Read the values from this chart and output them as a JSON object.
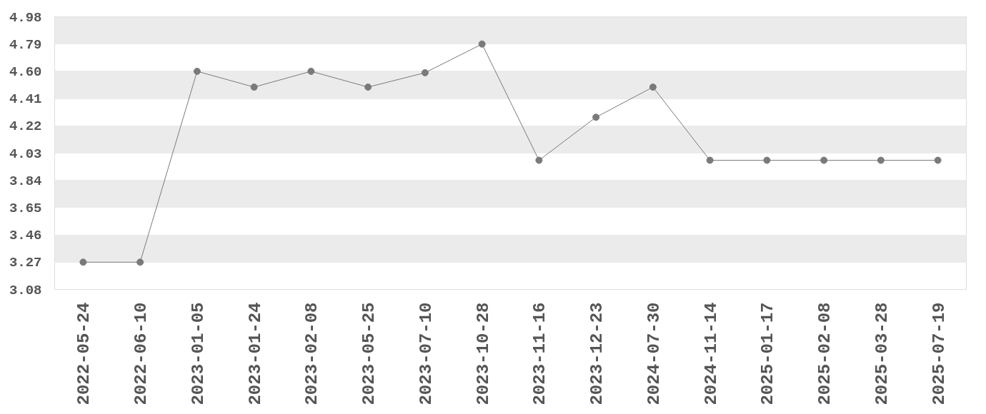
{
  "chart_data": {
    "type": "line",
    "categories": [
      "2022-05-24",
      "2022-06-10",
      "2023-01-05",
      "2023-01-24",
      "2023-02-08",
      "2023-05-25",
      "2023-07-10",
      "2023-10-28",
      "2023-11-16",
      "2023-12-23",
      "2024-07-30",
      "2024-11-14",
      "2025-01-17",
      "2025-02-08",
      "2025-03-28",
      "2025-07-19"
    ],
    "series": [
      {
        "color": "#7a7a7a",
        "values": [
          3.27,
          3.27,
          4.6,
          4.49,
          4.6,
          4.49,
          4.59,
          4.79,
          3.98,
          4.28,
          4.49,
          3.98,
          3.98,
          3.98,
          3.98,
          3.98
        ]
      }
    ],
    "ylim": [
      3.08,
      4.98
    ],
    "yticks": [
      3.08,
      3.27,
      3.46,
      3.65,
      3.84,
      4.03,
      4.22,
      4.41,
      {
        "value": 4.6,
        "label": "4.60"
      },
      4.79,
      4.98
    ],
    "grid": "y",
    "marker": "circle",
    "line_style": "solid"
  }
}
